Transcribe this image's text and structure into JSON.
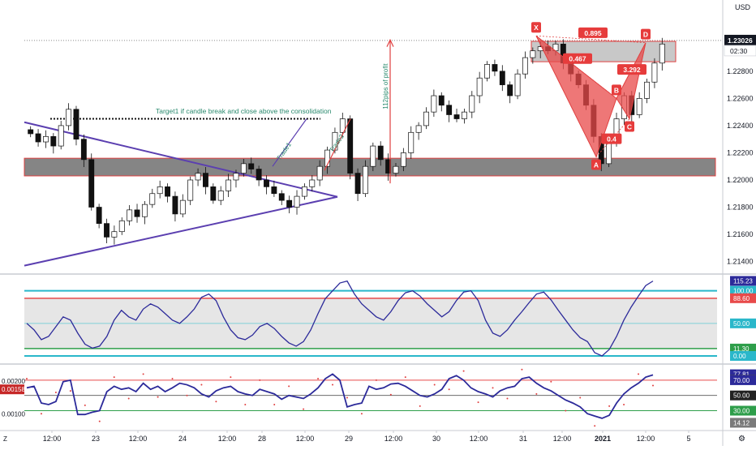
{
  "chart_data": [
    {
      "type": "candlestick",
      "pane": "price",
      "currency": "USD",
      "current_price": "1.23026",
      "countdown": "02:30",
      "y_ticks": [
        "1.23000",
        "1.22800",
        "1.22600",
        "1.22400",
        "1.22200",
        "1.22000",
        "1.21800",
        "1.21600",
        "1.21400"
      ],
      "ylim": [
        1.2132,
        1.233
      ],
      "close_path": [
        1.2234,
        1.2228,
        1.2232,
        1.2225,
        1.224,
        1.2252,
        1.223,
        1.2215,
        1.218,
        1.2168,
        1.2158,
        1.2162,
        1.217,
        1.2178,
        1.2173,
        1.2182,
        1.219,
        1.2195,
        1.2188,
        1.2175,
        1.2185,
        1.22,
        1.2205,
        1.2195,
        1.2185,
        1.2192,
        1.22,
        1.2205,
        1.2212,
        1.2208,
        1.22,
        1.2195,
        1.219,
        1.2185,
        1.218,
        1.2188,
        1.2195,
        1.22,
        1.221,
        1.2222,
        1.2235,
        1.2245,
        1.2205,
        1.219,
        1.221,
        1.2225,
        1.2215,
        1.2205,
        1.221,
        1.222,
        1.2235,
        1.224,
        1.225,
        1.2262,
        1.2255,
        1.2248,
        1.2245,
        1.225,
        1.2262,
        1.2275,
        1.2285,
        1.228,
        1.227,
        1.2262,
        1.2278,
        1.229,
        1.2295,
        1.2298,
        1.2295,
        1.23,
        1.2286,
        1.2278,
        1.227,
        1.2255,
        1.2232,
        1.2212,
        1.2228,
        1.2245,
        1.2262,
        1.2248,
        1.226,
        1.2272,
        1.2286,
        1.23
      ],
      "texts": {
        "target1": "Target1 if candle break and close above the consolidation",
        "trade1": "Trade1",
        "trade2": "Trade2",
        "profit": "112pips of profit"
      },
      "harmonic_points": {
        "X": "X",
        "A": "A",
        "B": "B",
        "C": "C",
        "D": "D"
      },
      "ratios": {
        "xb": "0.467",
        "xd": "0.895",
        "bd": "3.292",
        "ac": "0.4"
      }
    },
    {
      "type": "line",
      "pane": "oscillator1",
      "badges": [
        "115.23",
        "100.00",
        "88.60",
        "50.00",
        "11.30",
        "0.00"
      ],
      "levels": [
        0,
        11.3,
        50,
        88.6,
        100
      ],
      "ylim": [
        -10,
        122
      ],
      "values": [
        50,
        40,
        25,
        30,
        45,
        60,
        55,
        35,
        18,
        12,
        15,
        30,
        55,
        70,
        60,
        55,
        72,
        80,
        75,
        65,
        55,
        50,
        60,
        72,
        90,
        95,
        85,
        60,
        40,
        28,
        25,
        32,
        45,
        50,
        42,
        30,
        20,
        15,
        22,
        40,
        65,
        88,
        100,
        112,
        115,
        95,
        80,
        70,
        60,
        55,
        68,
        85,
        97,
        100,
        92,
        80,
        70,
        60,
        68,
        85,
        98,
        100,
        85,
        55,
        35,
        30,
        40,
        55,
        68,
        82,
        95,
        98,
        86,
        70,
        55,
        40,
        28,
        22,
        5,
        0,
        10,
        30,
        55,
        75,
        92,
        108,
        115
      ]
    },
    {
      "type": "line",
      "pane": "oscillator2",
      "badges": [
        "77.81",
        "70.47",
        "70.00",
        "50.00",
        "30.00",
        "14.12"
      ],
      "left_ticks": [
        "0.00158",
        "0.00200",
        "0.00100"
      ],
      "levels": [
        30,
        50,
        70
      ],
      "ylim": [
        5,
        88
      ],
      "values": [
        60,
        62,
        40,
        38,
        42,
        68,
        70,
        25,
        25,
        28,
        30,
        55,
        62,
        58,
        60,
        55,
        66,
        58,
        62,
        55,
        60,
        66,
        64,
        60,
        52,
        48,
        56,
        60,
        62,
        55,
        52,
        50,
        58,
        55,
        52,
        45,
        50,
        48,
        46,
        52,
        60,
        72,
        78,
        70,
        35,
        38,
        40,
        62,
        58,
        60,
        65,
        66,
        62,
        56,
        50,
        48,
        52,
        58,
        72,
        76,
        70,
        60,
        55,
        52,
        48,
        56,
        60,
        62,
        72,
        74,
        66,
        60,
        56,
        50,
        44,
        40,
        35,
        26,
        23,
        20,
        24,
        40,
        52,
        60,
        66,
        74,
        77
      ]
    }
  ],
  "time_axis": {
    "labels": [
      "12:00",
      "23",
      "12:00",
      "24",
      "12:00",
      "28",
      "12:00",
      "29",
      "12:00",
      "30",
      "12:00",
      "31",
      "12:00",
      "2021",
      "12:00",
      "5"
    ]
  },
  "corner_labels": {
    "bottom_left": "Z",
    "bottom_right": "⚙"
  }
}
